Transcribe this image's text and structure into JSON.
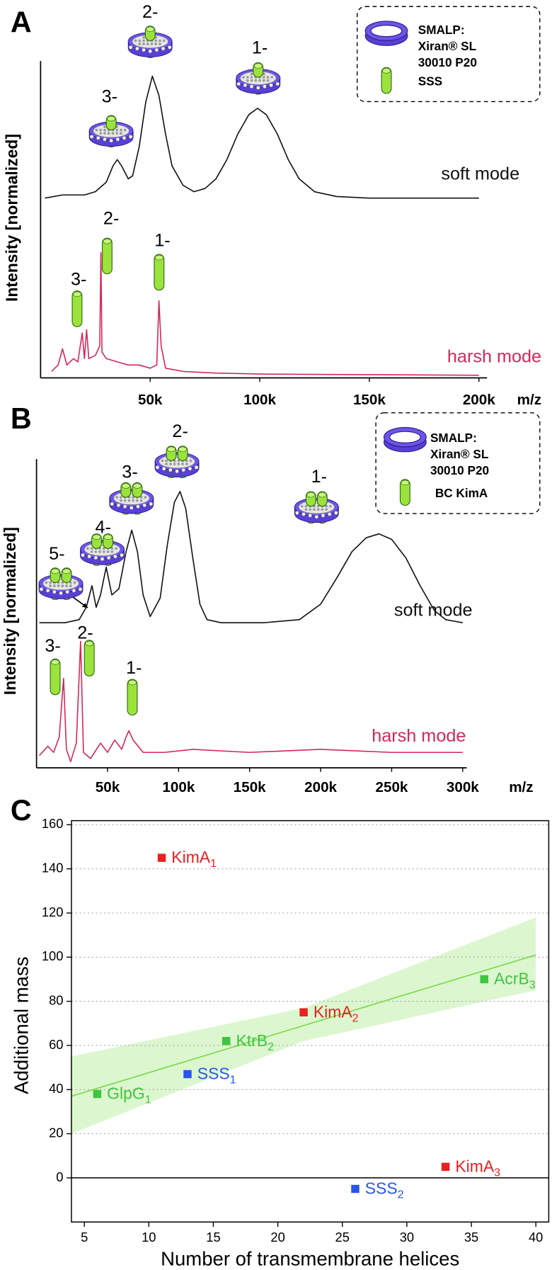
{
  "chart_data": [
    {
      "type": "line",
      "panel": "A",
      "ylabel": "Intensity [normalized]",
      "xlabel": "m/z",
      "xlim": [
        0,
        200000
      ],
      "ylim": [
        0,
        1
      ],
      "xticks": [
        {
          "value": 50000,
          "label": "50k"
        },
        {
          "value": 100000,
          "label": "100k"
        },
        {
          "value": 150000,
          "label": "150k"
        },
        {
          "value": 200000,
          "label": "200k"
        }
      ],
      "series": [
        {
          "name": "soft mode",
          "color": "#111111",
          "x": [
            2000,
            10000,
            20000,
            25000,
            30000,
            33000,
            35000,
            37000,
            40000,
            42000,
            45000,
            48000,
            51000,
            54000,
            57000,
            60000,
            65000,
            70000,
            75000,
            80000,
            85000,
            90000,
            95000,
            99000,
            103000,
            108000,
            113000,
            118000,
            125000,
            135000,
            150000,
            170000,
            200000
          ],
          "values": [
            0.56,
            0.57,
            0.57,
            0.58,
            0.61,
            0.66,
            0.68,
            0.66,
            0.62,
            0.63,
            0.72,
            0.86,
            0.94,
            0.88,
            0.76,
            0.66,
            0.6,
            0.58,
            0.59,
            0.62,
            0.68,
            0.76,
            0.82,
            0.84,
            0.82,
            0.76,
            0.68,
            0.62,
            0.58,
            0.565,
            0.56,
            0.56,
            0.56
          ]
        },
        {
          "name": "harsh mode",
          "color": "#d4285a",
          "x": [
            5000,
            8000,
            10000,
            12000,
            15000,
            17000,
            19000,
            20000,
            21000,
            22000,
            25000,
            27000,
            27500,
            28000,
            30000,
            35000,
            40000,
            45000,
            50000,
            53000,
            54000,
            55000,
            57000,
            65000,
            80000,
            100000,
            150000,
            200000
          ],
          "values": [
            0.02,
            0.04,
            0.09,
            0.04,
            0.06,
            0.05,
            0.14,
            0.06,
            0.15,
            0.06,
            0.07,
            0.1,
            0.39,
            0.08,
            0.06,
            0.05,
            0.04,
            0.04,
            0.03,
            0.04,
            0.24,
            0.1,
            0.03,
            0.02,
            0.015,
            0.012,
            0.01,
            0.008
          ]
        }
      ],
      "soft_charges": [
        "3-",
        "2-",
        "1-"
      ],
      "harsh_charges": [
        "3-",
        "2-",
        "1-"
      ],
      "legend": {
        "text": [
          "SMALP:",
          "Xiran® SL",
          "30010 P20"
        ],
        "protein": "SSS"
      }
    },
    {
      "type": "line",
      "panel": "B",
      "ylabel": "Intensity [normalized]",
      "xlabel": "m/z",
      "xlim": [
        0,
        310000
      ],
      "ylim": [
        0,
        1
      ],
      "xticks": [
        {
          "value": 50000,
          "label": "50k"
        },
        {
          "value": 100000,
          "label": "100k"
        },
        {
          "value": 150000,
          "label": "150k"
        },
        {
          "value": 200000,
          "label": "200k"
        },
        {
          "value": 250000,
          "label": "250k"
        },
        {
          "value": 300000,
          "label": "300k"
        }
      ],
      "series": [
        {
          "name": "soft mode",
          "color": "#111111",
          "x": [
            2000,
            20000,
            30000,
            35000,
            39000,
            42000,
            45000,
            49000,
            53000,
            58000,
            63000,
            67000,
            71000,
            75000,
            80000,
            87000,
            92000,
            97000,
            101000,
            105000,
            110000,
            115000,
            120000,
            130000,
            160000,
            185000,
            200000,
            212000,
            222000,
            232000,
            241000,
            250000,
            260000,
            270000,
            280000,
            288000,
            300000
          ],
          "values": [
            0.47,
            0.47,
            0.48,
            0.52,
            0.59,
            0.52,
            0.56,
            0.65,
            0.56,
            0.58,
            0.7,
            0.77,
            0.7,
            0.56,
            0.49,
            0.55,
            0.72,
            0.86,
            0.895,
            0.84,
            0.68,
            0.53,
            0.48,
            0.47,
            0.47,
            0.48,
            0.53,
            0.62,
            0.7,
            0.745,
            0.758,
            0.74,
            0.68,
            0.59,
            0.51,
            0.48,
            0.47
          ]
        },
        {
          "name": "harsh mode",
          "color": "#d4285a",
          "x": [
            2000,
            8000,
            12000,
            16000,
            19000,
            21000,
            24000,
            28000,
            31000,
            33000,
            38000,
            45000,
            50000,
            55000,
            60000,
            63000,
            65000,
            68000,
            75000,
            90000,
            110000,
            150000,
            200000,
            250000,
            300000
          ],
          "values": [
            0.04,
            0.07,
            0.05,
            0.1,
            0.29,
            0.06,
            0.02,
            0.08,
            0.41,
            0.05,
            0.03,
            0.08,
            0.05,
            0.09,
            0.06,
            0.1,
            0.12,
            0.09,
            0.05,
            0.05,
            0.06,
            0.05,
            0.06,
            0.05,
            0.05
          ]
        }
      ],
      "soft_charges": [
        "5-",
        "4-",
        "3-",
        "2-",
        "1-"
      ],
      "harsh_charges": [
        "3-",
        "2-",
        "1-"
      ],
      "legend": {
        "text": [
          "SMALP:",
          "Xiran® SL",
          "30010 P20"
        ],
        "protein": "BC KimA"
      }
    },
    {
      "type": "scatter",
      "panel": "C",
      "xlabel": "Number of transmembrane helices",
      "ylabel": "Additional mass",
      "xlim": [
        4,
        41
      ],
      "ylim": [
        -20,
        160
      ],
      "xticks": [
        5,
        10,
        15,
        20,
        25,
        30,
        35,
        40
      ],
      "yticks": [
        0,
        20,
        40,
        60,
        80,
        100,
        120,
        140,
        160
      ],
      "grid": true,
      "points": [
        {
          "label": "KimA",
          "subscript": "1",
          "x": 11,
          "y": 145,
          "color": "#e8201f"
        },
        {
          "label": "AcrB",
          "subscript": "3",
          "x": 36,
          "y": 90,
          "color": "#3fc43f"
        },
        {
          "label": "KimA",
          "subscript": "2",
          "x": 22,
          "y": 75,
          "color": "#e8201f"
        },
        {
          "label": "KtrB",
          "subscript": "2",
          "x": 16,
          "y": 62,
          "color": "#3fc43f"
        },
        {
          "label": "SSS",
          "subscript": "1",
          "x": 13,
          "y": 47,
          "color": "#2a55e8"
        },
        {
          "label": "GlpG",
          "subscript": "1",
          "x": 6,
          "y": 38,
          "color": "#3fc43f"
        },
        {
          "label": "KimA",
          "subscript": "3",
          "x": 33,
          "y": 5,
          "color": "#e8201f"
        },
        {
          "label": "SSS",
          "subscript": "2",
          "x": 26,
          "y": -5,
          "color": "#2a55e8"
        }
      ],
      "fit": {
        "x": [
          4,
          40
        ],
        "values": [
          37,
          101
        ],
        "color": "#7ddc4b"
      },
      "band": {
        "x": [
          4,
          22,
          40
        ],
        "lower": [
          20,
          62,
          85
        ],
        "upper": [
          55,
          77,
          118
        ],
        "color": "#dcf7cf"
      }
    }
  ]
}
